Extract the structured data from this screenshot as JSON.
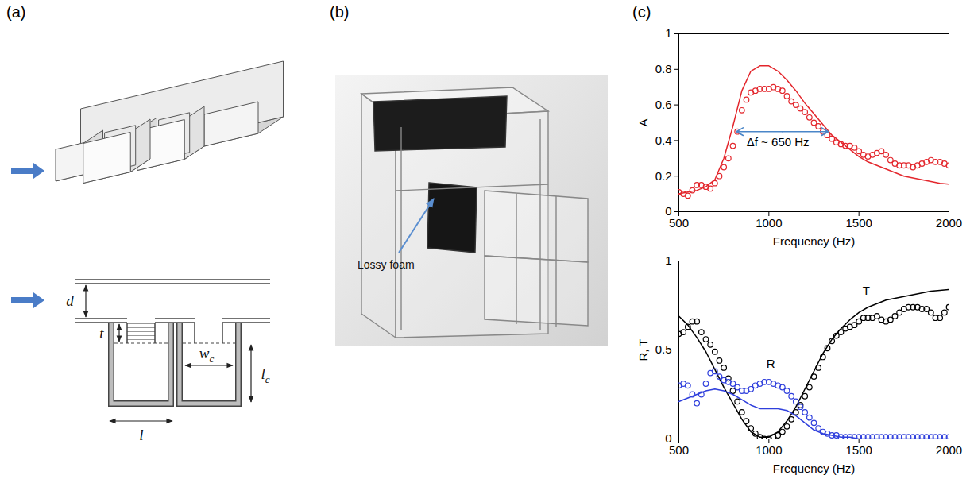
{
  "panel_labels": [
    "(a)",
    "(b)",
    "(c)"
  ],
  "schematic": {
    "dimension_labels": [
      {
        "main": "d"
      },
      {
        "main": "t"
      },
      {
        "main": "l",
        "sub": "c"
      },
      {
        "main": "w",
        "sub": "c"
      },
      {
        "main": "l"
      }
    ]
  },
  "photo": {
    "annotation": "Lossy foam"
  },
  "chart_data": [
    {
      "type": "line",
      "xlabel": "Frequency (Hz)",
      "ylabel": "A",
      "xlim": [
        500,
        2000
      ],
      "xticks": [
        500,
        1000,
        1500,
        2000
      ],
      "ylim": [
        0,
        1
      ],
      "yticks": [
        0,
        0.2,
        0.4,
        0.6,
        0.8,
        1
      ],
      "series": [
        {
          "type": "scatter",
          "marker": "circle",
          "color": "#e3262c",
          "x": [
            500,
            525,
            550,
            575,
            600,
            625,
            650,
            675,
            700,
            725,
            750,
            775,
            800,
            825,
            850,
            875,
            900,
            925,
            950,
            975,
            1000,
            1025,
            1050,
            1075,
            1100,
            1125,
            1150,
            1175,
            1200,
            1225,
            1250,
            1275,
            1300,
            1325,
            1350,
            1375,
            1400,
            1425,
            1450,
            1475,
            1500,
            1525,
            1550,
            1575,
            1600,
            1625,
            1650,
            1675,
            1700,
            1725,
            1750,
            1775,
            1800,
            1825,
            1850,
            1875,
            1900,
            1925,
            1950,
            1975,
            2000
          ],
          "values": [
            0.11,
            0.1,
            0.09,
            0.12,
            0.15,
            0.15,
            0.14,
            0.13,
            0.16,
            0.2,
            0.25,
            0.3,
            0.37,
            0.45,
            0.57,
            0.63,
            0.67,
            0.68,
            0.69,
            0.69,
            0.69,
            0.7,
            0.69,
            0.68,
            0.65,
            0.62,
            0.6,
            0.58,
            0.56,
            0.53,
            0.5,
            0.48,
            0.45,
            0.43,
            0.41,
            0.39,
            0.38,
            0.37,
            0.37,
            0.36,
            0.34,
            0.32,
            0.31,
            0.32,
            0.33,
            0.34,
            0.32,
            0.29,
            0.27,
            0.26,
            0.26,
            0.26,
            0.25,
            0.26,
            0.27,
            0.28,
            0.29,
            0.28,
            0.28,
            0.27,
            0.26
          ]
        },
        {
          "type": "line",
          "line_style": "solid",
          "color": "#e3262c",
          "x": [
            500,
            550,
            600,
            650,
            700,
            750,
            800,
            850,
            900,
            950,
            1000,
            1050,
            1100,
            1150,
            1200,
            1250,
            1300,
            1350,
            1400,
            1450,
            1500,
            1550,
            1600,
            1650,
            1700,
            1750,
            1800,
            1850,
            1900,
            1950,
            2000
          ],
          "values": [
            0.1,
            0.11,
            0.12,
            0.14,
            0.18,
            0.3,
            0.48,
            0.68,
            0.79,
            0.82,
            0.82,
            0.79,
            0.74,
            0.68,
            0.61,
            0.55,
            0.49,
            0.43,
            0.39,
            0.35,
            0.31,
            0.28,
            0.26,
            0.24,
            0.22,
            0.2,
            0.19,
            0.18,
            0.17,
            0.16,
            0.155
          ]
        }
      ],
      "annotations": [
        {
          "text": "Δf ~ 650 Hz",
          "x": 1050,
          "y": 0.39,
          "color": "#4a86c8",
          "arrow": {
            "x1": 820,
            "x2": 1330,
            "y": 0.45
          }
        }
      ]
    },
    {
      "type": "line",
      "xlabel": "Frequency (Hz)",
      "ylabel": "R, T",
      "xlim": [
        500,
        2000
      ],
      "xticks": [
        500,
        1000,
        1500,
        2000
      ],
      "ylim": [
        0,
        1
      ],
      "yticks": [
        0,
        0.5,
        1
      ],
      "series": [
        {
          "type": "scatter",
          "marker": "circle",
          "color": "#000000",
          "x": [
            500,
            525,
            550,
            575,
            600,
            625,
            650,
            675,
            700,
            725,
            750,
            775,
            800,
            825,
            850,
            875,
            900,
            925,
            950,
            975,
            1000,
            1025,
            1050,
            1075,
            1100,
            1125,
            1150,
            1175,
            1200,
            1225,
            1250,
            1275,
            1300,
            1325,
            1350,
            1375,
            1400,
            1425,
            1450,
            1475,
            1500,
            1525,
            1550,
            1575,
            1600,
            1625,
            1650,
            1675,
            1700,
            1725,
            1750,
            1775,
            1800,
            1825,
            1850,
            1875,
            1900,
            1925,
            1950,
            1975,
            2000
          ],
          "values": [
            0.59,
            0.6,
            0.63,
            0.66,
            0.66,
            0.6,
            0.56,
            0.53,
            0.49,
            0.44,
            0.4,
            0.34,
            0.27,
            0.21,
            0.15,
            0.1,
            0.06,
            0.03,
            0.01,
            0.0,
            0.0,
            0.01,
            0.02,
            0.04,
            0.07,
            0.11,
            0.15,
            0.19,
            0.24,
            0.29,
            0.35,
            0.4,
            0.46,
            0.51,
            0.55,
            0.58,
            0.6,
            0.62,
            0.63,
            0.64,
            0.66,
            0.68,
            0.68,
            0.68,
            0.69,
            0.67,
            0.66,
            0.67,
            0.69,
            0.71,
            0.73,
            0.74,
            0.74,
            0.74,
            0.73,
            0.73,
            0.71,
            0.68,
            0.68,
            0.71,
            0.74
          ]
        },
        {
          "type": "line",
          "line_style": "solid",
          "color": "#000000",
          "x": [
            500,
            550,
            600,
            650,
            700,
            750,
            800,
            850,
            900,
            950,
            1000,
            1050,
            1100,
            1150,
            1200,
            1250,
            1300,
            1350,
            1400,
            1450,
            1500,
            1550,
            1600,
            1650,
            1700,
            1750,
            1800,
            1850,
            1900,
            1950,
            2000
          ],
          "values": [
            0.69,
            0.64,
            0.57,
            0.49,
            0.39,
            0.29,
            0.2,
            0.11,
            0.04,
            0.01,
            0.01,
            0.04,
            0.1,
            0.18,
            0.28,
            0.38,
            0.48,
            0.56,
            0.62,
            0.67,
            0.71,
            0.74,
            0.76,
            0.78,
            0.79,
            0.8,
            0.81,
            0.82,
            0.83,
            0.835,
            0.84
          ]
        },
        {
          "type": "scatter",
          "marker": "circle",
          "color": "#2f3fdc",
          "x": [
            500,
            525,
            550,
            575,
            600,
            625,
            650,
            675,
            700,
            725,
            750,
            775,
            800,
            825,
            850,
            875,
            900,
            925,
            950,
            975,
            1000,
            1025,
            1050,
            1075,
            1100,
            1125,
            1150,
            1175,
            1200,
            1225,
            1250,
            1275,
            1300,
            1325,
            1350,
            1375,
            1400,
            1425,
            1450,
            1475,
            1500,
            1525,
            1550,
            1575,
            1600,
            1625,
            1650,
            1675,
            1700,
            1725,
            1750,
            1775,
            1800,
            1825,
            1850,
            1875,
            1900,
            1925,
            1950,
            1975,
            2000
          ],
          "values": [
            0.3,
            0.31,
            0.3,
            0.25,
            0.2,
            0.25,
            0.31,
            0.37,
            0.38,
            0.35,
            0.33,
            0.32,
            0.31,
            0.29,
            0.27,
            0.27,
            0.28,
            0.3,
            0.31,
            0.32,
            0.32,
            0.31,
            0.3,
            0.29,
            0.27,
            0.24,
            0.21,
            0.18,
            0.15,
            0.12,
            0.09,
            0.06,
            0.04,
            0.03,
            0.02,
            0.02,
            0.01,
            0.01,
            0.01,
            0.01,
            0.01,
            0.01,
            0.01,
            0.01,
            0.01,
            0.01,
            0.01,
            0.01,
            0.01,
            0.01,
            0.01,
            0.01,
            0.01,
            0.01,
            0.01,
            0.01,
            0.01,
            0.01,
            0.01,
            0.01,
            0.01
          ]
        },
        {
          "type": "line",
          "line_style": "solid",
          "color": "#2f3fdc",
          "x": [
            500,
            550,
            600,
            650,
            700,
            750,
            800,
            850,
            900,
            950,
            1000,
            1050,
            1100,
            1150,
            1200,
            1250,
            1300,
            1350,
            1400,
            1450,
            1500,
            1550,
            1600,
            1650,
            1700,
            1750,
            1800,
            1850,
            1900,
            1950,
            2000
          ],
          "values": [
            0.21,
            0.23,
            0.25,
            0.27,
            0.28,
            0.27,
            0.25,
            0.22,
            0.19,
            0.17,
            0.17,
            0.17,
            0.16,
            0.13,
            0.09,
            0.05,
            0.03,
            0.02,
            0.01,
            0.01,
            0,
            0,
            0,
            0,
            0,
            0,
            0,
            0,
            0,
            0,
            0
          ]
        }
      ],
      "annotations": [
        {
          "text": "T",
          "x": 1540,
          "y": 0.83,
          "color": "#000000"
        },
        {
          "text": "R",
          "x": 1010,
          "y": 0.42,
          "color": "#000000"
        }
      ]
    }
  ]
}
